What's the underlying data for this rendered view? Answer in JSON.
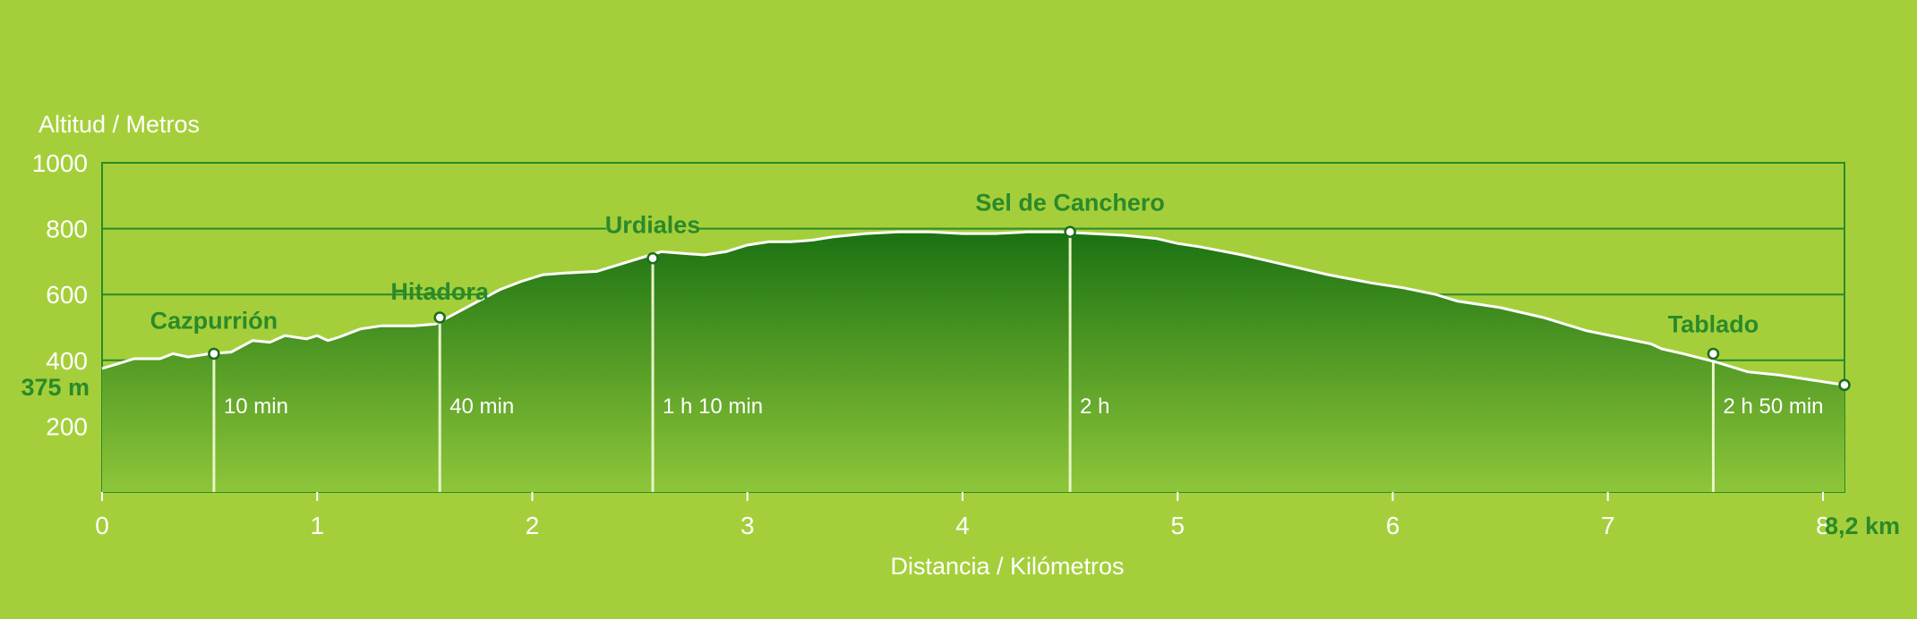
{
  "chart_data": {
    "type": "area",
    "ylabel": "Altitud / Metros",
    "xlabel": "Distancia / Kilómetros",
    "xlim": [
      0,
      8.1
    ],
    "ylim": [
      0,
      1000
    ],
    "x_ticks": [
      "0",
      "1",
      "2",
      "3",
      "4",
      "5",
      "6",
      "7",
      "8"
    ],
    "y_ticks": [
      "200",
      "400",
      "600",
      "800",
      "1000"
    ],
    "gridlines_y": [
      200,
      400,
      600,
      800,
      1000
    ],
    "start_label": "375 m",
    "end_label": "8,2 km",
    "colors": {
      "background": "#a5cf3a",
      "fill_top": "#1b7212",
      "fill_bottom": "#8ec63a",
      "line": "#ffffff",
      "accent": "#2a8a2a"
    },
    "profile": {
      "x": [
        0,
        0.15,
        0.27,
        0.33,
        0.4,
        0.45,
        0.5,
        0.6,
        0.7,
        0.78,
        0.85,
        0.95,
        1.0,
        1.05,
        1.1,
        1.2,
        1.3,
        1.45,
        1.55,
        1.65,
        1.75,
        1.85,
        1.95,
        2.05,
        2.15,
        2.3,
        2.4,
        2.5,
        2.6,
        2.7,
        2.8,
        2.9,
        3.0,
        3.1,
        3.2,
        3.3,
        3.4,
        3.55,
        3.7,
        3.85,
        4.0,
        4.15,
        4.3,
        4.45,
        4.6,
        4.75,
        4.9,
        5.0,
        5.1,
        5.3,
        5.5,
        5.7,
        5.9,
        6.05,
        6.2,
        6.3,
        6.5,
        6.7,
        6.9,
        7.05,
        7.2,
        7.25,
        7.35,
        7.5,
        7.65,
        7.8,
        7.95,
        8.1
      ],
      "y": [
        375,
        405,
        405,
        420,
        410,
        415,
        420,
        425,
        460,
        455,
        475,
        465,
        475,
        460,
        470,
        495,
        505,
        505,
        510,
        545,
        580,
        615,
        640,
        660,
        665,
        670,
        690,
        710,
        730,
        725,
        720,
        730,
        750,
        760,
        760,
        765,
        775,
        785,
        790,
        790,
        785,
        785,
        790,
        790,
        785,
        780,
        770,
        755,
        745,
        720,
        690,
        660,
        635,
        620,
        600,
        580,
        560,
        530,
        490,
        470,
        450,
        435,
        420,
        395,
        365,
        355,
        340,
        325
      ]
    },
    "waypoints": [
      {
        "name": "Cazpurrión",
        "x": 0.52,
        "y": 420,
        "time": "10 min"
      },
      {
        "name": "Hitadora",
        "x": 1.57,
        "y": 530,
        "time": "40 min"
      },
      {
        "name": "Urdiales",
        "x": 2.56,
        "y": 710,
        "time": "1 h 10 min"
      },
      {
        "name": "Sel de Canchero",
        "x": 4.5,
        "y": 790,
        "time": "2 h"
      },
      {
        "name": "Tablado",
        "x": 7.49,
        "y": 420,
        "time": "2 h 50 min"
      },
      {
        "name": "",
        "x": 8.1,
        "y": 325,
        "time": ""
      }
    ]
  }
}
